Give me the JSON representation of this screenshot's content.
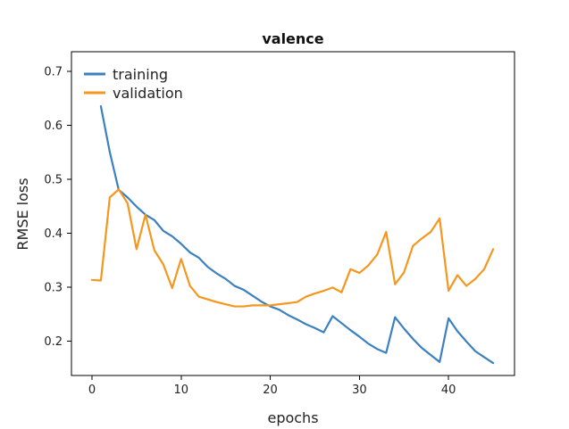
{
  "chart_data": {
    "type": "line",
    "title": "valence",
    "xlabel": "epochs",
    "ylabel": "RMSE loss",
    "xlim": [
      -2.3,
      47.4
    ],
    "ylim": [
      0.136,
      0.736
    ],
    "xticks": [
      0,
      10,
      20,
      30,
      40
    ],
    "yticks": [
      0.2,
      0.3,
      0.4,
      0.5,
      0.6,
      0.7
    ],
    "ytick_labels": [
      "0.2",
      "0.3",
      "0.4",
      "0.5",
      "0.6",
      "0.7"
    ],
    "grid": false,
    "legend_position": "top-left",
    "x": [
      1,
      2,
      3,
      4,
      5,
      6,
      7,
      8,
      9,
      10,
      11,
      12,
      13,
      14,
      15,
      16,
      17,
      18,
      19,
      20,
      21,
      22,
      23,
      24,
      25,
      26,
      27,
      28,
      29,
      30,
      31,
      32,
      33,
      34,
      35,
      36,
      37,
      38,
      39,
      40,
      41,
      42,
      43,
      44,
      45
    ],
    "series": [
      {
        "name": "training",
        "color": "#3b80c0",
        "x": [
          1,
          2,
          3,
          4,
          5,
          6,
          7,
          8,
          9,
          10,
          11,
          12,
          13,
          14,
          15,
          16,
          17,
          18,
          19,
          20,
          21,
          22,
          23,
          24,
          25,
          26,
          27,
          28,
          29,
          30,
          31,
          32,
          33,
          34,
          35,
          36,
          37,
          38,
          39,
          40,
          41,
          42,
          43,
          44,
          45
        ],
        "values": [
          0.635,
          0.55,
          0.48,
          0.466,
          0.449,
          0.434,
          0.424,
          0.404,
          0.394,
          0.38,
          0.364,
          0.354,
          0.337,
          0.325,
          0.315,
          0.302,
          0.295,
          0.284,
          0.273,
          0.264,
          0.258,
          0.248,
          0.24,
          0.231,
          0.224,
          0.216,
          0.246,
          0.233,
          0.22,
          0.208,
          0.195,
          0.185,
          0.178,
          0.244,
          0.223,
          0.204,
          0.187,
          0.174,
          0.161,
          0.242,
          0.218,
          0.199,
          0.181,
          0.17,
          0.159
        ]
      },
      {
        "name": "validation",
        "color": "#f5961e",
        "x": [
          0,
          1,
          2,
          3,
          4,
          5,
          6,
          7,
          8,
          9,
          10,
          11,
          12,
          13,
          14,
          15,
          16,
          17,
          18,
          19,
          20,
          21,
          22,
          23,
          24,
          25,
          26,
          27,
          28,
          29,
          30,
          31,
          32,
          33,
          34,
          35,
          36,
          37,
          38,
          39,
          40,
          41,
          42,
          43,
          44,
          45
        ],
        "values": [
          0.313,
          0.312,
          0.466,
          0.481,
          0.455,
          0.37,
          0.434,
          0.368,
          0.342,
          0.298,
          0.352,
          0.302,
          0.282,
          0.277,
          0.272,
          0.268,
          0.264,
          0.264,
          0.266,
          0.266,
          0.266,
          0.268,
          0.27,
          0.272,
          0.282,
          0.288,
          0.293,
          0.299,
          0.29,
          0.333,
          0.326,
          0.34,
          0.36,
          0.402,
          0.305,
          0.327,
          0.376,
          0.39,
          0.402,
          0.427,
          0.293,
          0.322,
          0.302,
          0.315,
          0.333,
          0.37
        ]
      }
    ]
  }
}
